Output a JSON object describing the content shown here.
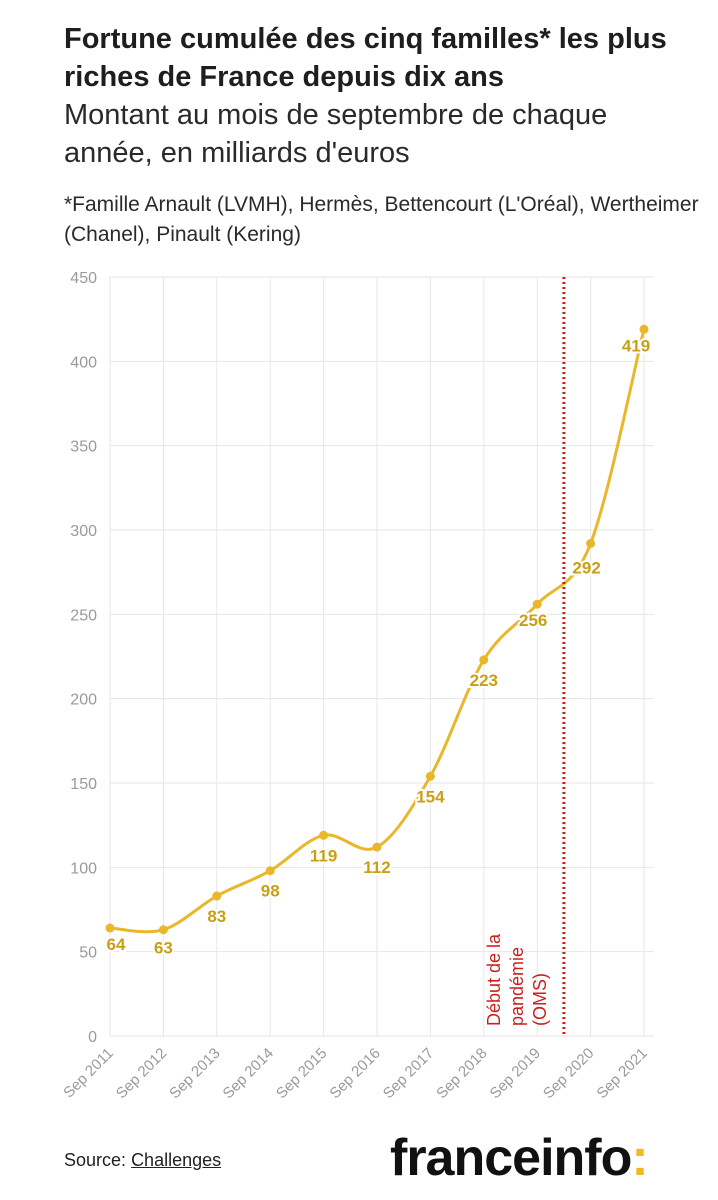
{
  "header": {
    "title": "Fortune cumulée des cinq familles* les plus riches de France depuis dix ans",
    "subtitle": "Montant au mois de septembre de chaque année, en milliards d'euros",
    "footnote": "*Famille Arnault (LVMH), Hermès, Bettencourt (L'Oréal), Wertheimer (Chanel), Pinault (Kering)"
  },
  "footer": {
    "source_label": "Source:",
    "source_link": "Challenges",
    "brand_name": "franceinfo",
    "brand_colon": ":"
  },
  "colors": {
    "line": "#e9b72a",
    "label": "#c9a015",
    "annotation": "#cc1f1f",
    "grid": "#e6e6e6",
    "axis_text": "#9a9a9a"
  },
  "chart_data": {
    "type": "line",
    "x": [
      "Sep 2011",
      "Sep 2012",
      "Sep 2013",
      "Sep 2014",
      "Sep 2015",
      "Sep 2016",
      "Sep 2017",
      "Sep 2018",
      "Sep 2019",
      "Sep 2020",
      "Sep 2021"
    ],
    "series": [
      {
        "values": [
          64,
          63,
          83,
          98,
          119,
          112,
          154,
          223,
          256,
          292,
          419
        ]
      }
    ],
    "data_labels": [
      "64",
      "63",
      "83",
      "98",
      "119",
      "112",
      "154",
      "223",
      "256",
      "292",
      "419"
    ],
    "ylim": [
      0,
      450
    ],
    "yticks": [
      0,
      50,
      100,
      150,
      200,
      250,
      300,
      350,
      400,
      450
    ],
    "grid": true,
    "annotation": {
      "text_lines": [
        "Début de la",
        "pandémie",
        "(OMS)"
      ],
      "x_position": 8.5,
      "style": "dotted vertical line"
    }
  }
}
